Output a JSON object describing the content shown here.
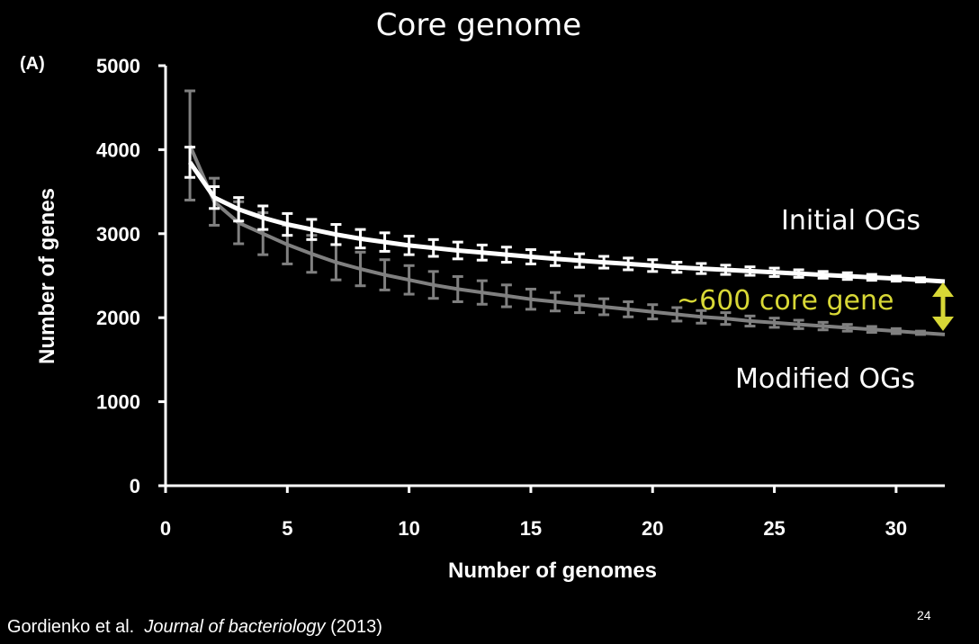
{
  "slide": {
    "title": "Core genome",
    "panel_label": "(A)",
    "citation_authors": "Gordienko et al.",
    "citation_journal": "Journal of bacteriology",
    "citation_year": "(2013)",
    "slide_number": "24",
    "annotation_colors": {
      "text": "#ffffff",
      "highlight": "#d8d836"
    }
  },
  "annotations": {
    "initial": "Initial OGs",
    "modified": "Modified OGs",
    "difference": "~600 core gene"
  },
  "chart_data": {
    "type": "line",
    "title": "Core genome",
    "xlabel": "Number of genomes",
    "ylabel": "Number of genes",
    "xlim": [
      0,
      32
    ],
    "ylim": [
      0,
      5000
    ],
    "xticks": [
      "0",
      "5",
      "10",
      "15",
      "20",
      "25",
      "30"
    ],
    "yticks": [
      "0",
      "1000",
      "2000",
      "3000",
      "4000",
      "5000"
    ],
    "grid": false,
    "legend": "none",
    "series": [
      {
        "name": "Initial OGs",
        "color": "#ffffff",
        "x": [
          1,
          2,
          3,
          4,
          5,
          6,
          7,
          8,
          9,
          10,
          11,
          12,
          13,
          14,
          15,
          16,
          17,
          18,
          19,
          20,
          21,
          22,
          23,
          24,
          25,
          26,
          27,
          28,
          29,
          30,
          31,
          32
        ],
        "y": [
          3850,
          3430,
          3290,
          3190,
          3110,
          3050,
          2990,
          2940,
          2900,
          2860,
          2830,
          2800,
          2775,
          2750,
          2725,
          2700,
          2680,
          2660,
          2640,
          2620,
          2600,
          2585,
          2570,
          2555,
          2540,
          2525,
          2510,
          2495,
          2480,
          2465,
          2450,
          2430
        ],
        "err": [
          180,
          130,
          140,
          140,
          130,
          120,
          120,
          110,
          110,
          110,
          100,
          100,
          90,
          90,
          85,
          80,
          80,
          70,
          70,
          70,
          60,
          60,
          55,
          50,
          50,
          45,
          40,
          40,
          35,
          30,
          25,
          0
        ]
      },
      {
        "name": "Modified OGs",
        "color": "#808080",
        "x": [
          1,
          2,
          3,
          4,
          5,
          6,
          7,
          8,
          9,
          10,
          11,
          12,
          13,
          14,
          15,
          16,
          17,
          18,
          19,
          20,
          21,
          22,
          23,
          24,
          25,
          26,
          27,
          28,
          29,
          30,
          31,
          32
        ],
        "y": [
          4050,
          3380,
          3130,
          3000,
          2870,
          2760,
          2660,
          2580,
          2510,
          2450,
          2390,
          2340,
          2300,
          2260,
          2220,
          2190,
          2160,
          2130,
          2100,
          2070,
          2040,
          2010,
          1990,
          1960,
          1940,
          1920,
          1900,
          1880,
          1860,
          1840,
          1820,
          1800
        ],
        "err": [
          650,
          280,
          250,
          250,
          230,
          220,
          210,
          200,
          180,
          170,
          160,
          150,
          140,
          130,
          120,
          110,
          100,
          95,
          90,
          85,
          80,
          75,
          70,
          60,
          55,
          50,
          45,
          40,
          35,
          30,
          20,
          0
        ]
      }
    ]
  }
}
